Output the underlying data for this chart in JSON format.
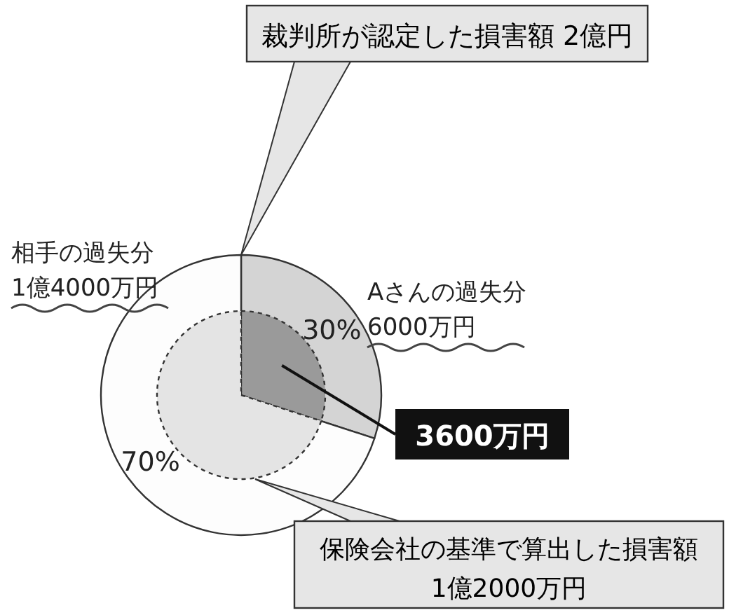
{
  "chart_data": {
    "type": "pie",
    "title": "裁判所が認定した損害額 2億円",
    "categories": [
      "Aさんの過失分 6000万円",
      "相手の過失分 1億4000万円"
    ],
    "series": [
      {
        "values": [
          30,
          70
        ],
        "colors": [
          "#d4d4d4",
          "#ffffff"
        ],
        "value_labels": [
          "30%",
          "70%"
        ]
      },
      {
        "values": [
          3600,
          8400
        ],
        "colors": [
          "#9a9a9a",
          "#e4e4e4"
        ],
        "value_labels": [
          "3600万円",
          null
        ]
      }
    ],
    "annotations": [
      "保険会社の基準で算出した損害額 1億2000万円"
    ]
  }
}
